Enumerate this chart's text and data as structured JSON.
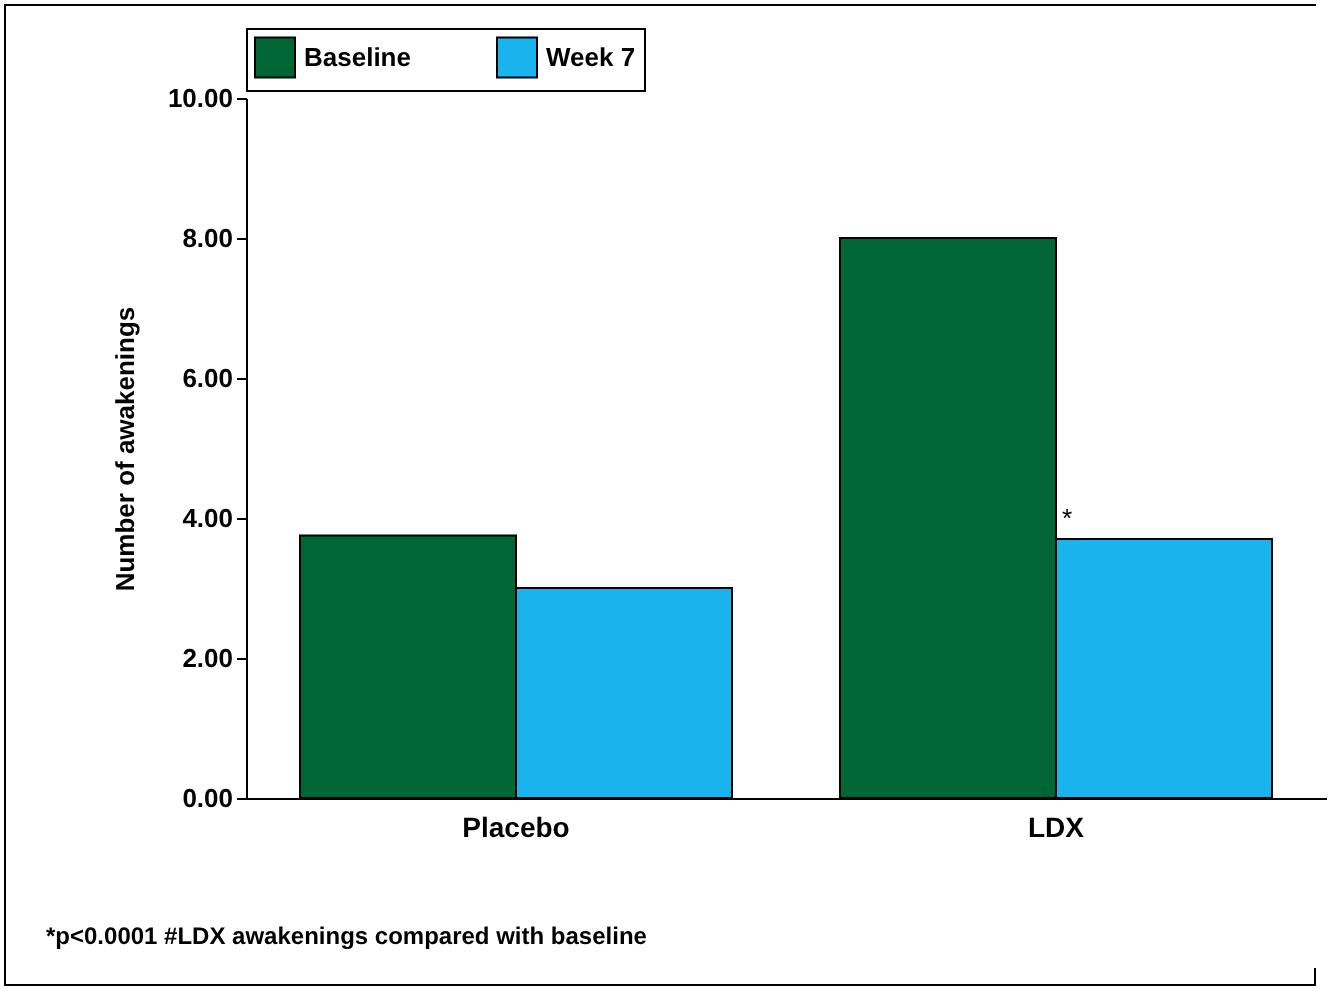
{
  "chart_data": {
    "type": "bar",
    "ylabel": "Number of awakenings",
    "categories": [
      "Placebo",
      "LDX"
    ],
    "series": [
      {
        "name": "Baseline",
        "color": "#006633",
        "values": [
          3.75,
          8.0
        ]
      },
      {
        "name": "Week 7",
        "color": "#19b4ee",
        "values": [
          3.0,
          3.7
        ]
      }
    ],
    "ylim": [
      0,
      10
    ],
    "yticks": [
      {
        "value": 0,
        "label": "0.00"
      },
      {
        "value": 2,
        "label": "2.00"
      },
      {
        "value": 4,
        "label": "4.00"
      },
      {
        "value": 6,
        "label": "6.00"
      },
      {
        "value": 8,
        "label": "8.00"
      },
      {
        "value": 10,
        "label": "10.00"
      }
    ],
    "grid": false,
    "legend": "top",
    "annotations": [
      {
        "text": "*",
        "x": "LDX",
        "y": 3.7
      },
      "*p<0.0001 #LDX awakenings compared with baseline"
    ]
  }
}
